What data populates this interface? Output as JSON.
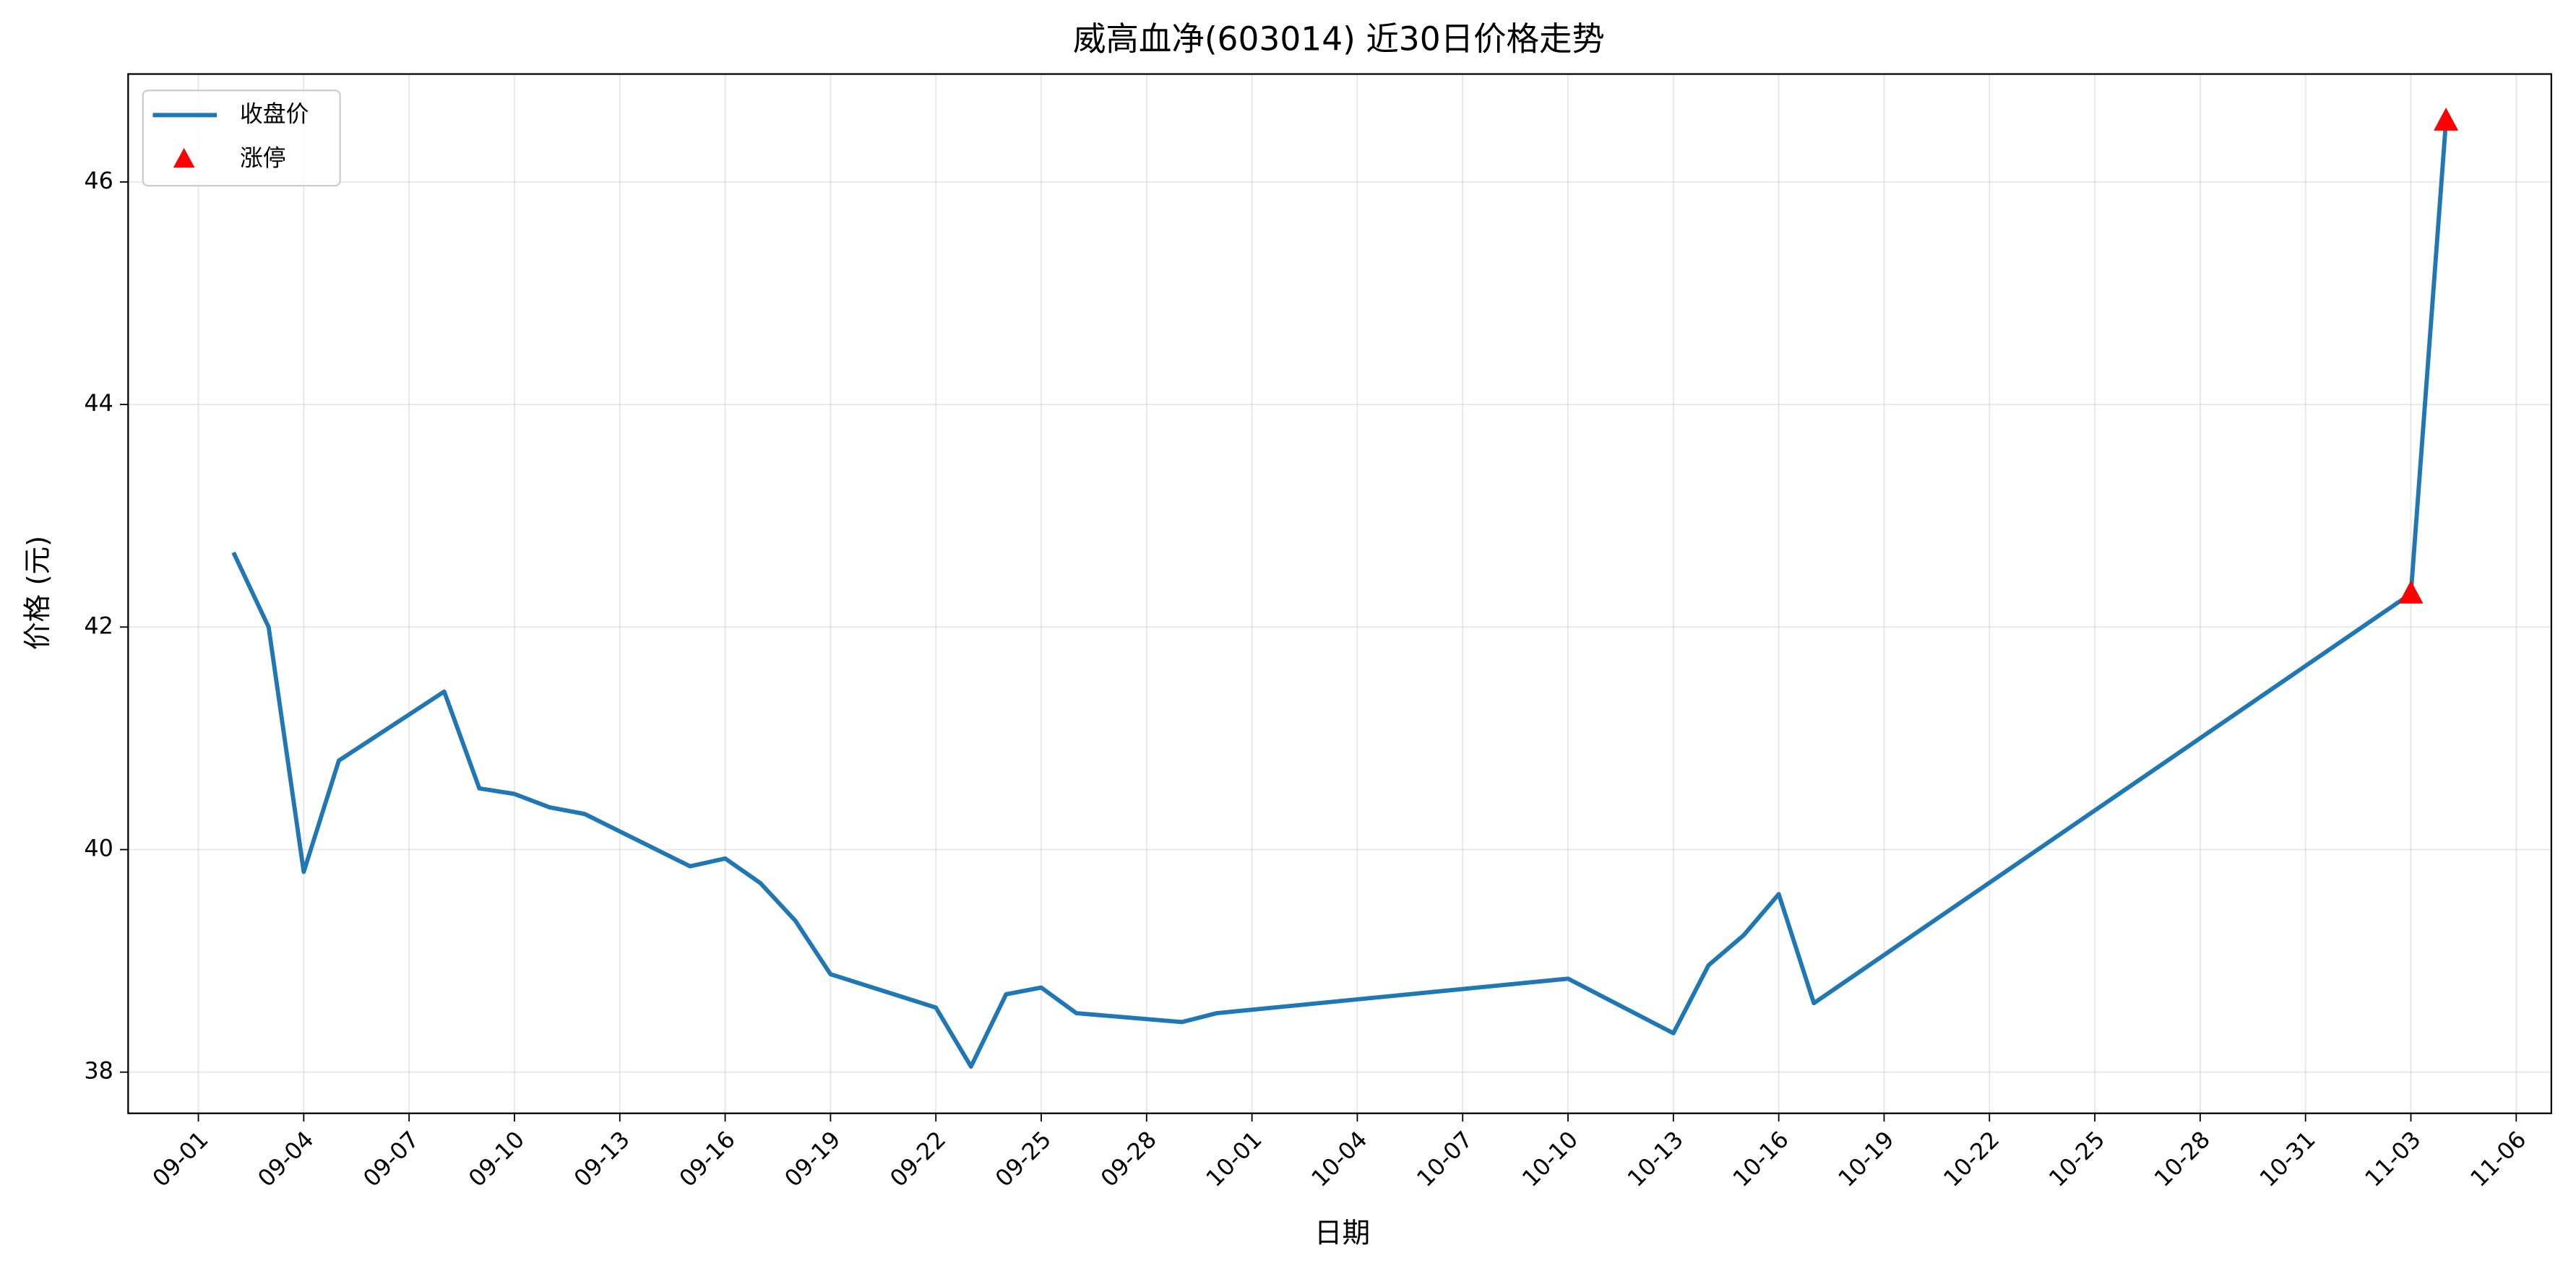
{
  "chart_data": {
    "type": "line",
    "title": "威高血净(603014) 近30日价格走势",
    "xlabel": "日期",
    "ylabel": "价格 (元)",
    "x": [
      "09-02",
      "09-03",
      "09-04",
      "09-05",
      "09-08",
      "09-09",
      "09-10",
      "09-11",
      "09-12",
      "09-15",
      "09-16",
      "09-17",
      "09-18",
      "09-19",
      "09-22",
      "09-23",
      "09-24",
      "09-25",
      "09-26",
      "09-29",
      "09-30",
      "10-10",
      "10-13",
      "10-14",
      "10-15",
      "10-16",
      "10-17",
      "11-03",
      "11-04"
    ],
    "series": [
      {
        "name": "收盘价",
        "color": "#1f77b4",
        "values": [
          42.67,
          42.0,
          39.8,
          40.8,
          41.42,
          40.55,
          40.5,
          40.38,
          40.32,
          39.85,
          39.92,
          39.7,
          39.36,
          38.88,
          38.58,
          38.05,
          38.7,
          38.76,
          38.53,
          38.45,
          38.53,
          38.84,
          38.35,
          38.96,
          39.23,
          39.6,
          38.62,
          42.3,
          46.55
        ]
      },
      {
        "name": "涨停",
        "color": "#ff0000",
        "type": "scatter",
        "marker": "triangle",
        "x": [
          "11-03",
          "11-04"
        ],
        "values": [
          42.3,
          46.55
        ]
      }
    ],
    "xlim": [
      "08-30",
      "11-07"
    ],
    "xticks": [
      "09-01",
      "09-04",
      "09-07",
      "09-10",
      "09-13",
      "09-16",
      "09-19",
      "09-22",
      "09-25",
      "09-28",
      "10-01",
      "10-04",
      "10-07",
      "10-10",
      "10-13",
      "10-16",
      "10-19",
      "10-22",
      "10-25",
      "10-28",
      "10-31",
      "11-03",
      "11-06"
    ],
    "ylim": [
      37.63,
      46.97
    ],
    "yticks": [
      38,
      40,
      42,
      44,
      46
    ],
    "grid": true,
    "legend": "upper left"
  }
}
